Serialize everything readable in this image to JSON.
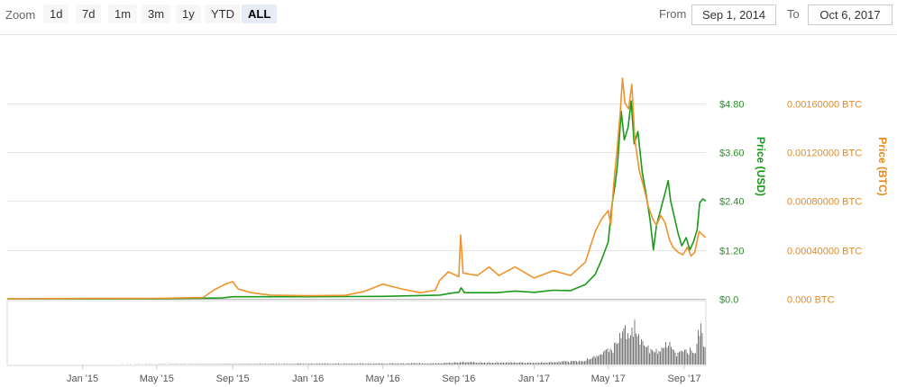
{
  "toolbar": {
    "zoom_label": "Zoom",
    "zoom_buttons": [
      "1d",
      "7d",
      "1m",
      "3m",
      "1y",
      "YTD",
      "ALL"
    ],
    "active_zoom": "ALL",
    "from_label": "From",
    "from_value": "Sep 1, 2014",
    "to_label": "To",
    "to_value": "Oct 6, 2017"
  },
  "chart_data": {
    "type": "line",
    "x_range": [
      "2014-09-01",
      "2017-10-06"
    ],
    "x_ticks": [
      "Jan '15",
      "May '15",
      "Sep '15",
      "Jan '16",
      "May '16",
      "Sep '16",
      "Jan '17",
      "May '17",
      "Sep '17"
    ],
    "y_usd": {
      "title": "Price (USD)",
      "ticks": [
        "$0.0",
        "$1.20",
        "$2.40",
        "$3.60",
        "$4.80"
      ],
      "ylim": [
        0,
        6.4
      ]
    },
    "y_btc": {
      "title": "Price (BTC)",
      "ticks": [
        "0.000 BTC",
        "0.00040000 BTC",
        "0.00080000 BTC",
        "0.00120000 BTC",
        "0.00160000 BTC"
      ],
      "ylim": [
        0,
        0.00213
      ]
    },
    "grid": true,
    "series": [
      {
        "name": "Price (USD)",
        "axis": "usd",
        "color": "#1a9a1a",
        "points": [
          [
            "2014-09-01",
            0.0
          ],
          [
            "2015-01-01",
            0.0
          ],
          [
            "2015-05-01",
            0.0
          ],
          [
            "2015-08-15",
            0.02
          ],
          [
            "2015-09-01",
            0.05
          ],
          [
            "2016-01-01",
            0.05
          ],
          [
            "2016-05-01",
            0.06
          ],
          [
            "2016-08-01",
            0.09
          ],
          [
            "2016-08-20",
            0.14
          ],
          [
            "2016-09-01",
            0.16
          ],
          [
            "2016-09-05",
            0.27
          ],
          [
            "2016-09-10",
            0.15
          ],
          [
            "2016-11-01",
            0.15
          ],
          [
            "2016-12-01",
            0.19
          ],
          [
            "2017-01-01",
            0.16
          ],
          [
            "2017-02-01",
            0.21
          ],
          [
            "2017-03-01",
            0.2
          ],
          [
            "2017-03-25",
            0.35
          ],
          [
            "2017-04-10",
            0.6
          ],
          [
            "2017-04-20",
            0.95
          ],
          [
            "2017-05-01",
            1.4
          ],
          [
            "2017-05-07",
            2.3
          ],
          [
            "2017-05-12",
            2.8
          ],
          [
            "2017-05-16",
            3.3
          ],
          [
            "2017-05-22",
            4.6
          ],
          [
            "2017-05-27",
            3.9
          ],
          [
            "2017-06-02",
            4.2
          ],
          [
            "2017-06-07",
            4.85
          ],
          [
            "2017-06-12",
            3.8
          ],
          [
            "2017-06-18",
            4.1
          ],
          [
            "2017-06-25",
            3.1
          ],
          [
            "2017-07-02",
            2.5
          ],
          [
            "2017-07-08",
            1.9
          ],
          [
            "2017-07-13",
            1.2
          ],
          [
            "2017-07-18",
            1.8
          ],
          [
            "2017-07-25",
            2.2
          ],
          [
            "2017-08-01",
            2.6
          ],
          [
            "2017-08-06",
            2.9
          ],
          [
            "2017-08-10",
            2.4
          ],
          [
            "2017-08-16",
            2.0
          ],
          [
            "2017-08-22",
            1.6
          ],
          [
            "2017-08-28",
            1.3
          ],
          [
            "2017-09-04",
            1.5
          ],
          [
            "2017-09-10",
            1.2
          ],
          [
            "2017-09-16",
            1.4
          ],
          [
            "2017-09-22",
            1.7
          ],
          [
            "2017-09-26",
            2.35
          ],
          [
            "2017-10-01",
            2.45
          ],
          [
            "2017-10-06",
            2.4
          ]
        ]
      },
      {
        "name": "Price (BTC)",
        "axis": "btc",
        "color": "#f0932b",
        "points": [
          [
            "2014-09-01",
            0.0
          ],
          [
            "2015-01-01",
            3e-06
          ],
          [
            "2015-05-01",
            4e-06
          ],
          [
            "2015-07-15",
            1e-05
          ],
          [
            "2015-08-01",
            7e-05
          ],
          [
            "2015-08-20",
            0.00012
          ],
          [
            "2015-09-01",
            0.00014
          ],
          [
            "2015-09-10",
            8e-05
          ],
          [
            "2015-10-01",
            5e-05
          ],
          [
            "2015-11-01",
            3e-05
          ],
          [
            "2016-01-01",
            2.5e-05
          ],
          [
            "2016-03-01",
            2.8e-05
          ],
          [
            "2016-04-01",
            6e-05
          ],
          [
            "2016-05-01",
            0.00012
          ],
          [
            "2016-06-01",
            8e-05
          ],
          [
            "2016-07-01",
            5e-05
          ],
          [
            "2016-07-25",
            7e-05
          ],
          [
            "2016-08-01",
            0.00015
          ],
          [
            "2016-08-15",
            0.00022
          ],
          [
            "2016-09-01",
            0.00018
          ],
          [
            "2016-09-04",
            0.00052
          ],
          [
            "2016-09-08",
            0.00021
          ],
          [
            "2016-10-01",
            0.00019
          ],
          [
            "2016-10-20",
            0.00026
          ],
          [
            "2016-11-05",
            0.00019
          ],
          [
            "2016-12-01",
            0.00026
          ],
          [
            "2017-01-01",
            0.00017
          ],
          [
            "2017-02-01",
            0.00023
          ],
          [
            "2017-03-01",
            0.00019
          ],
          [
            "2017-03-25",
            0.0003
          ],
          [
            "2017-04-10",
            0.00055
          ],
          [
            "2017-04-20",
            0.00065
          ],
          [
            "2017-05-01",
            0.00072
          ],
          [
            "2017-05-05",
            0.0006
          ],
          [
            "2017-05-10",
            0.00095
          ],
          [
            "2017-05-15",
            0.0012
          ],
          [
            "2017-05-20",
            0.0015
          ],
          [
            "2017-05-24",
            0.0018
          ],
          [
            "2017-05-28",
            0.0016
          ],
          [
            "2017-06-03",
            0.00155
          ],
          [
            "2017-06-08",
            0.00175
          ],
          [
            "2017-06-13",
            0.0013
          ],
          [
            "2017-06-20",
            0.00105
          ],
          [
            "2017-06-28",
            0.0009
          ],
          [
            "2017-07-05",
            0.00075
          ],
          [
            "2017-07-12",
            0.00065
          ],
          [
            "2017-07-18",
            0.0006
          ],
          [
            "2017-07-25",
            0.00068
          ],
          [
            "2017-08-01",
            0.00062
          ],
          [
            "2017-08-08",
            0.00048
          ],
          [
            "2017-08-14",
            0.00042
          ],
          [
            "2017-08-22",
            0.00038
          ],
          [
            "2017-08-30",
            0.00036
          ],
          [
            "2017-09-06",
            0.00042
          ],
          [
            "2017-09-12",
            0.00035
          ],
          [
            "2017-09-18",
            0.00038
          ],
          [
            "2017-09-25",
            0.00055
          ],
          [
            "2017-10-01",
            0.00052
          ],
          [
            "2017-10-06",
            0.0005
          ]
        ]
      }
    ],
    "volume": {
      "points": [
        [
          "2014-09-01",
          0.0
        ],
        [
          "2015-08-01",
          0.01
        ],
        [
          "2016-08-01",
          0.03
        ],
        [
          "2016-09-05",
          0.05
        ],
        [
          "2017-01-01",
          0.04
        ],
        [
          "2017-03-20",
          0.08
        ],
        [
          "2017-04-20",
          0.22
        ],
        [
          "2017-05-15",
          0.45
        ],
        [
          "2017-05-25",
          0.82
        ],
        [
          "2017-06-05",
          0.6
        ],
        [
          "2017-06-12",
          1.0
        ],
        [
          "2017-06-25",
          0.45
        ],
        [
          "2017-07-10",
          0.35
        ],
        [
          "2017-07-25",
          0.3
        ],
        [
          "2017-08-05",
          0.5
        ],
        [
          "2017-08-20",
          0.25
        ],
        [
          "2017-09-05",
          0.3
        ],
        [
          "2017-09-20",
          0.35
        ],
        [
          "2017-09-27",
          0.92
        ],
        [
          "2017-10-06",
          0.3
        ]
      ]
    }
  }
}
